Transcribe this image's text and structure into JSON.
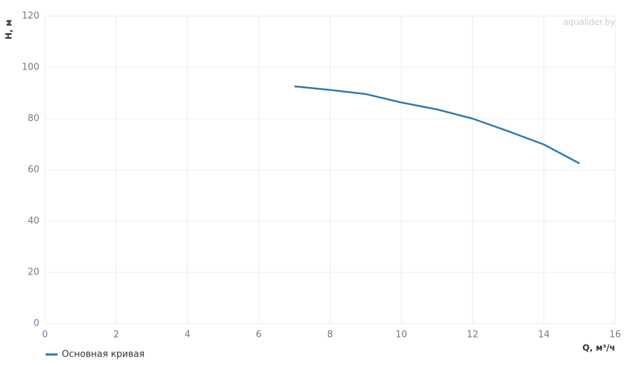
{
  "chart_data": {
    "type": "line",
    "watermark": "aqualider.by",
    "x_label": "Q, м³/ч",
    "y_label": "H, м",
    "x": [
      7,
      8,
      9,
      10,
      11,
      12,
      13,
      14,
      15
    ],
    "series": [
      {
        "name": "Основная кривая",
        "color": "#2878b4",
        "values": [
          92.6,
          91.2,
          89.6,
          86.3,
          83.6,
          80,
          75.1,
          69.9,
          62.5
        ]
      }
    ],
    "xlim": [
      0,
      16
    ],
    "xticks": [
      0,
      2,
      4,
      6,
      8,
      10,
      12,
      14,
      16
    ],
    "ylim": [
      0,
      120
    ],
    "yticks": [
      0,
      20,
      40,
      60,
      80,
      100,
      120
    ],
    "grid": true
  }
}
